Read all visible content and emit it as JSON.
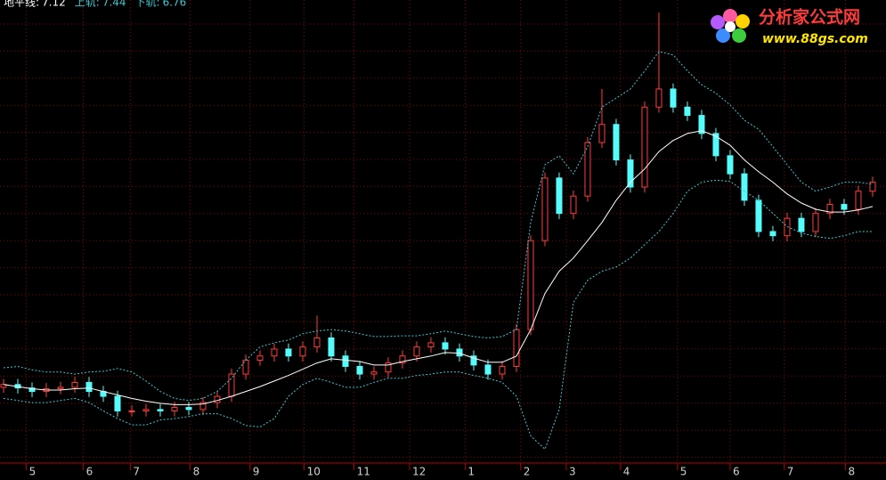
{
  "chart_data": {
    "type": "candlestick",
    "xlim": [
      -0.25,
      61.94
    ],
    "ylim": [
      3.43,
      10.09
    ],
    "xticks": [
      {
        "value": 1.6,
        "label": "5"
      },
      {
        "value": 5.6,
        "label": "6"
      },
      {
        "value": 8.9,
        "label": "7"
      },
      {
        "value": 13.1,
        "label": "8"
      },
      {
        "value": 17.3,
        "label": "9"
      },
      {
        "value": 21.1,
        "label": "10"
      },
      {
        "value": 24.6,
        "label": "11"
      },
      {
        "value": 28.5,
        "label": "12"
      },
      {
        "value": 32.4,
        "label": "1"
      },
      {
        "value": 36.3,
        "label": "2"
      },
      {
        "value": 39.5,
        "label": "3"
      },
      {
        "value": 43.3,
        "label": "4"
      },
      {
        "value": 47.3,
        "label": "5"
      },
      {
        "value": 51,
        "label": "6"
      },
      {
        "value": 54.8,
        "label": "7"
      },
      {
        "value": 59.1,
        "label": "8"
      }
    ],
    "grid": true,
    "candles": {
      "up_color": "#ff3c3c",
      "down_color": "#54fcfc",
      "open": [
        4.52,
        4.56,
        4.51,
        4.46,
        4.5,
        4.52,
        4.59,
        4.46,
        4.39,
        4.18,
        4.18,
        4.2,
        4.18,
        4.23,
        4.2,
        4.3,
        4.39,
        4.71,
        4.91,
        4.97,
        5.07,
        4.97,
        5.1,
        5.23,
        4.97,
        4.82,
        4.71,
        4.74,
        4.87,
        4.97,
        5.1,
        5.16,
        5.07,
        4.97,
        4.84,
        4.71,
        4.82,
        5.35,
        6.63,
        7.53,
        7.02,
        7.27,
        8.04,
        8.3,
        7.79,
        7.4,
        8.55,
        8.81,
        8.55,
        8.43,
        8.17,
        7.85,
        7.59,
        7.21,
        6.76,
        6.7,
        6.95,
        6.76,
        7.02,
        7.15,
        7.08,
        7.34
      ],
      "high": [
        4.64,
        4.64,
        4.59,
        4.58,
        4.6,
        4.67,
        4.67,
        4.54,
        4.47,
        4.26,
        4.28,
        4.28,
        4.31,
        4.31,
        4.38,
        4.47,
        4.79,
        4.99,
        5.05,
        5.15,
        5.15,
        5.18,
        5.55,
        5.31,
        5.05,
        4.9,
        4.82,
        4.95,
        5.05,
        5.18,
        5.24,
        5.24,
        5.15,
        5.05,
        4.92,
        4.9,
        5.43,
        6.71,
        7.61,
        7.61,
        7.35,
        8.12,
        8.81,
        8.38,
        7.87,
        8.63,
        9.91,
        8.89,
        8.63,
        8.51,
        8.25,
        7.93,
        7.67,
        7.29,
        6.84,
        7.03,
        7.03,
        7.1,
        7.23,
        7.23,
        7.42,
        7.55
      ],
      "low": [
        4.44,
        4.43,
        4.38,
        4.38,
        4.42,
        4.44,
        4.38,
        4.31,
        4.1,
        4.1,
        4.1,
        4.1,
        4.1,
        4.12,
        4.12,
        4.22,
        4.31,
        4.63,
        4.83,
        4.89,
        4.89,
        4.89,
        5.02,
        4.89,
        4.74,
        4.63,
        4.63,
        4.66,
        4.79,
        4.89,
        5.02,
        4.99,
        4.89,
        4.76,
        4.63,
        4.63,
        4.74,
        5.27,
        6.55,
        6.94,
        6.94,
        7.19,
        7.96,
        7.71,
        7.32,
        7.32,
        8.47,
        8.47,
        8.35,
        8.09,
        7.77,
        7.51,
        7.13,
        6.68,
        6.62,
        6.62,
        6.68,
        6.68,
        6.94,
        7.0,
        7.0,
        7.26
      ],
      "close": [
        4.56,
        4.51,
        4.46,
        4.5,
        4.52,
        4.59,
        4.46,
        4.39,
        4.18,
        4.18,
        4.2,
        4.18,
        4.23,
        4.2,
        4.3,
        4.39,
        4.71,
        4.91,
        4.97,
        5.07,
        4.97,
        5.1,
        5.23,
        4.97,
        4.82,
        4.71,
        4.74,
        4.87,
        4.97,
        5.1,
        5.16,
        5.07,
        4.97,
        4.84,
        4.71,
        4.82,
        5.35,
        6.63,
        7.53,
        7.02,
        7.27,
        8.04,
        8.3,
        7.79,
        7.4,
        8.55,
        8.81,
        8.55,
        8.43,
        8.17,
        7.85,
        7.59,
        7.21,
        6.76,
        6.7,
        6.95,
        6.76,
        7.02,
        7.15,
        7.08,
        7.34,
        7.47
      ]
    },
    "series": [
      {
        "name": "地平线:",
        "color": "#ffffff",
        "dashed": false,
        "values": [
          4.56,
          4.53,
          4.5,
          4.48,
          4.48,
          4.5,
          4.51,
          4.46,
          4.41,
          4.36,
          4.32,
          4.29,
          4.27,
          4.27,
          4.28,
          4.33,
          4.39,
          4.46,
          4.53,
          4.61,
          4.69,
          4.78,
          4.87,
          4.93,
          4.91,
          4.89,
          4.84,
          4.84,
          4.89,
          4.93,
          4.97,
          5.02,
          5.01,
          4.94,
          4.88,
          4.88,
          4.97,
          5.35,
          5.87,
          6.19,
          6.38,
          6.63,
          6.89,
          7.21,
          7.47,
          7.66,
          7.91,
          8.07,
          8.17,
          8.21,
          8.13,
          8.0,
          7.79,
          7.62,
          7.47,
          7.3,
          7.17,
          7.08,
          7.04,
          7.04,
          7.07,
          7.12
        ]
      },
      {
        "name": "上轨:",
        "color": "#3cc8d2",
        "dashed": true,
        "values": [
          4.8,
          4.82,
          4.77,
          4.74,
          4.74,
          4.71,
          4.74,
          4.75,
          4.79,
          4.74,
          4.61,
          4.46,
          4.36,
          4.33,
          4.36,
          4.46,
          4.65,
          4.91,
          5.1,
          5.16,
          5.2,
          5.29,
          5.33,
          5.35,
          5.33,
          5.29,
          5.25,
          5.25,
          5.26,
          5.26,
          5.29,
          5.33,
          5.29,
          5.25,
          5.23,
          5.25,
          5.35,
          6.89,
          7.72,
          7.85,
          7.59,
          7.98,
          8.55,
          8.68,
          8.81,
          9.07,
          9.35,
          9.3,
          9.07,
          8.87,
          8.75,
          8.58,
          8.36,
          8.23,
          7.98,
          7.72,
          7.47,
          7.34,
          7.4,
          7.47,
          7.47,
          7.44
        ]
      },
      {
        "name": "下轨:",
        "color": "#3cc8d2",
        "dashed": true,
        "values": [
          4.36,
          4.33,
          4.3,
          4.3,
          4.33,
          4.36,
          4.3,
          4.18,
          4.07,
          3.98,
          3.98,
          4.05,
          4.07,
          4.1,
          4.14,
          4.14,
          4.07,
          3.97,
          3.95,
          4.07,
          4.39,
          4.56,
          4.65,
          4.59,
          4.52,
          4.52,
          4.59,
          4.65,
          4.65,
          4.69,
          4.71,
          4.74,
          4.74,
          4.69,
          4.65,
          4.59,
          4.39,
          3.82,
          3.63,
          4.2,
          5.74,
          6.06,
          6.19,
          6.25,
          6.38,
          6.57,
          6.76,
          7.02,
          7.34,
          7.47,
          7.5,
          7.48,
          7.34,
          7.21,
          7.02,
          6.83,
          6.74,
          6.69,
          6.66,
          6.7,
          6.76,
          6.76
        ]
      }
    ],
    "watermark": {
      "title": "分析家公式网",
      "url": "www.88gs.com"
    }
  }
}
